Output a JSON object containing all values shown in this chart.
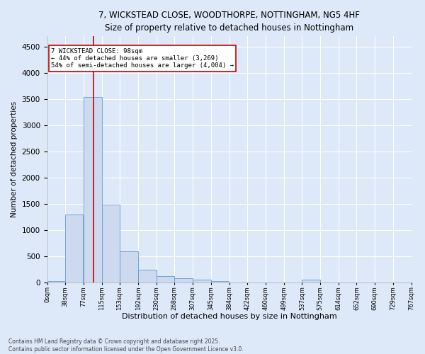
{
  "title_line1": "7, WICKSTEAD CLOSE, WOODTHORPE, NOTTINGHAM, NG5 4HF",
  "title_line2": "Size of property relative to detached houses in Nottingham",
  "xlabel": "Distribution of detached houses by size in Nottingham",
  "ylabel": "Number of detached properties",
  "bar_color": "#cdd9ee",
  "bar_edge_color": "#6699cc",
  "bar_left_edges": [
    0,
    38,
    77,
    115,
    153,
    192,
    230,
    268,
    307,
    345,
    384,
    422,
    460,
    499,
    537,
    575,
    614,
    652,
    690,
    729
  ],
  "bar_heights": [
    28,
    1290,
    3540,
    1490,
    590,
    245,
    120,
    80,
    45,
    28,
    0,
    0,
    0,
    0,
    45,
    0,
    0,
    0,
    0,
    0
  ],
  "bin_width": 38,
  "tick_labels": [
    "0sqm",
    "38sqm",
    "77sqm",
    "115sqm",
    "153sqm",
    "192sqm",
    "230sqm",
    "268sqm",
    "307sqm",
    "345sqm",
    "384sqm",
    "422sqm",
    "460sqm",
    "499sqm",
    "537sqm",
    "575sqm",
    "614sqm",
    "652sqm",
    "690sqm",
    "729sqm",
    "767sqm"
  ],
  "ylim": [
    0,
    4700
  ],
  "yticks": [
    0,
    500,
    1000,
    1500,
    2000,
    2500,
    3000,
    3500,
    4000,
    4500
  ],
  "vline_x": 98,
  "vline_color": "#cc0000",
  "annotation_text": "7 WICKSTEAD CLOSE: 98sqm\n← 44% of detached houses are smaller (3,269)\n54% of semi-detached houses are larger (4,004) →",
  "annotation_box_color": "#ffffff",
  "annotation_box_edge_color": "#cc0000",
  "background_color": "#dde8f8",
  "grid_color": "#ffffff",
  "footnote": "Contains HM Land Registry data © Crown copyright and database right 2025.\nContains public sector information licensed under the Open Government Licence v3.0."
}
